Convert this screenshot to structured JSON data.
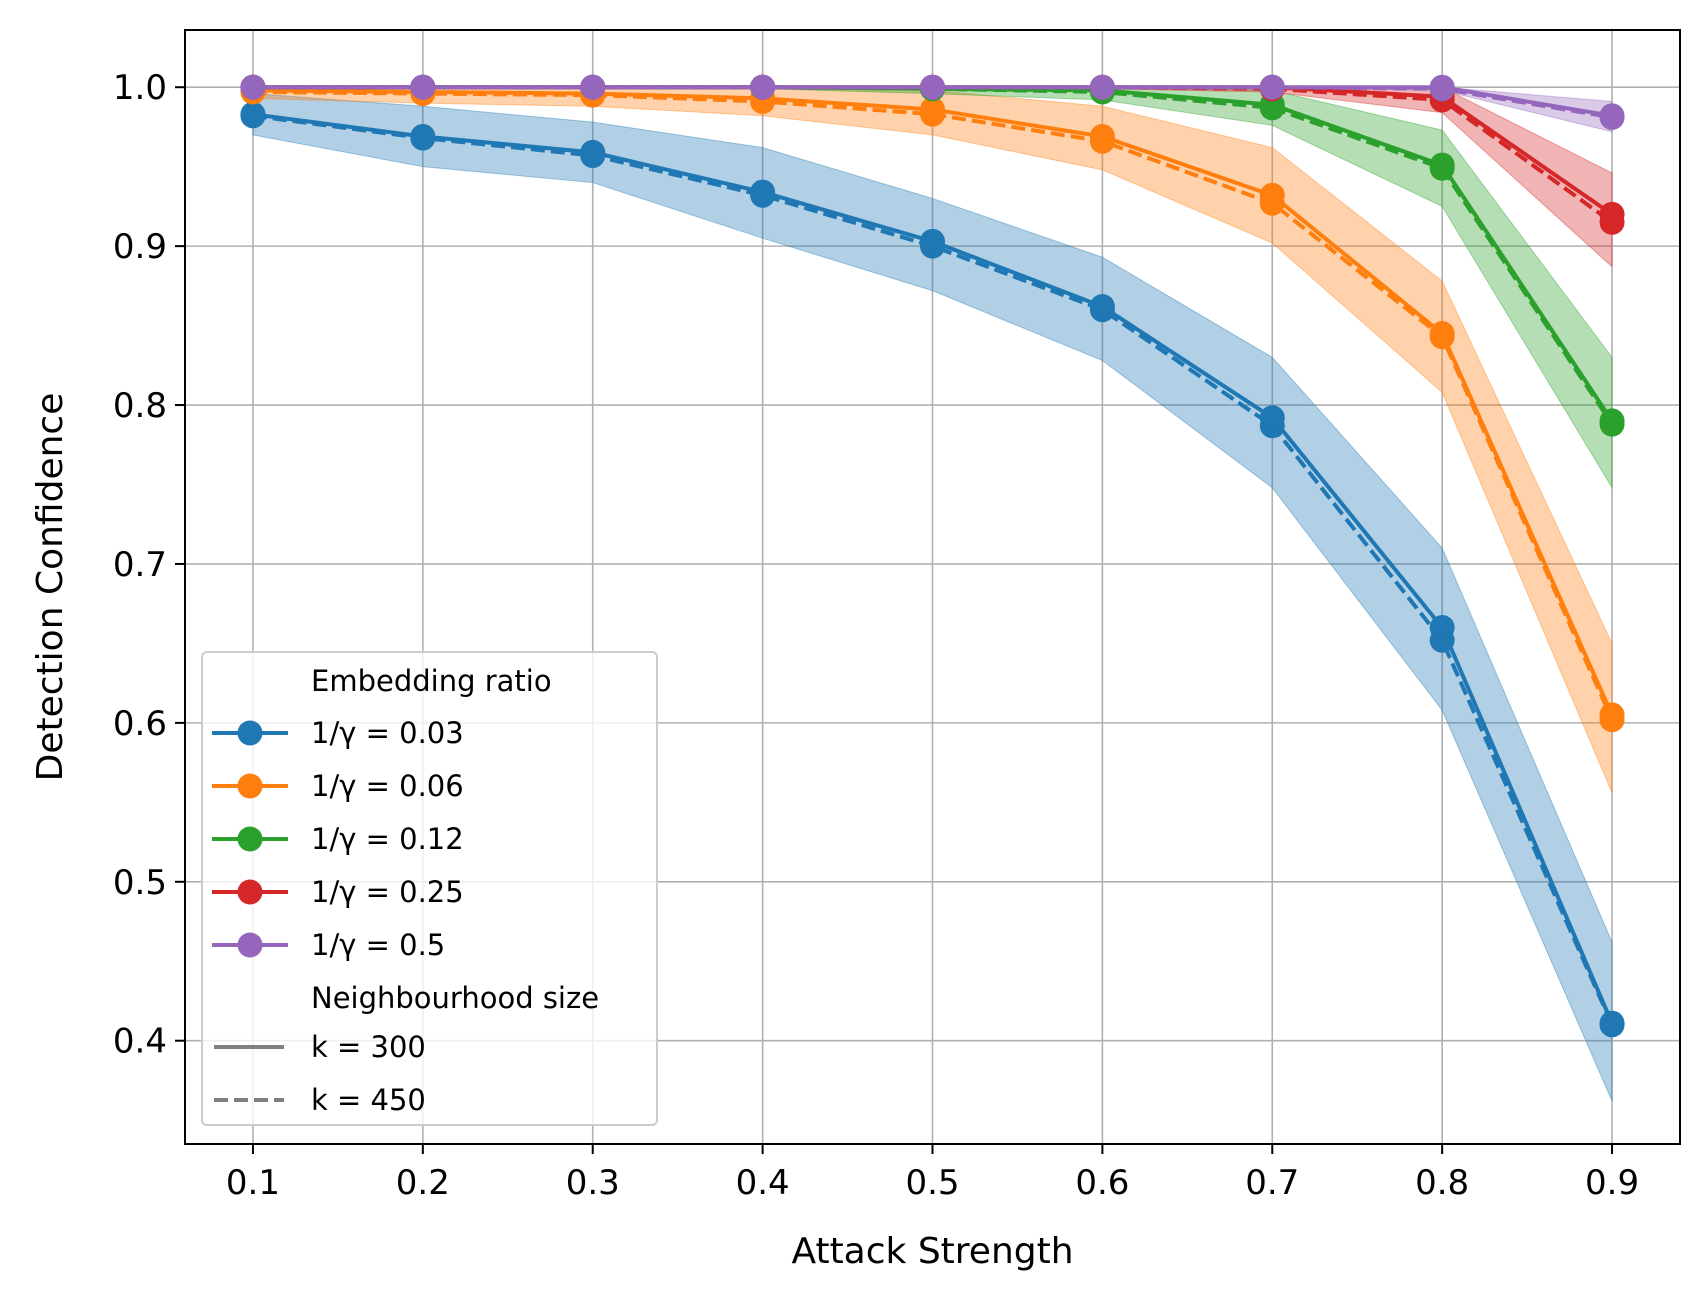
{
  "chart_data": {
    "type": "line",
    "title": "",
    "xlabel": "Attack Strength",
    "ylabel": "Detection Confidence",
    "x": [
      0.1,
      0.2,
      0.3,
      0.4,
      0.5,
      0.6,
      0.7,
      0.8,
      0.9
    ],
    "x_ticks": [
      "0.1",
      "0.2",
      "0.3",
      "0.4",
      "0.5",
      "0.6",
      "0.7",
      "0.8",
      "0.9"
    ],
    "y_ticks": [
      "0.4",
      "0.5",
      "0.6",
      "0.7",
      "0.8",
      "0.9",
      "1.0"
    ],
    "xlim": [
      0.06,
      0.94
    ],
    "ylim": [
      0.335,
      1.036
    ],
    "grid": true,
    "legend_position": "lower left",
    "legend": {
      "ratio_title": "Embedding ratio",
      "size_title": "Neighbourhood size",
      "k_entries": [
        {
          "label": "k = 300",
          "dash": "solid",
          "color": "#808080"
        },
        {
          "label": "k = 450",
          "dash": "dashed",
          "color": "#808080"
        }
      ]
    },
    "series": [
      {
        "name": "1/γ = 0.03",
        "color": "#1f77b4",
        "k300": [
          0.983,
          0.969,
          0.959,
          0.934,
          0.903,
          0.862,
          0.792,
          0.66,
          0.411
        ],
        "k450": [
          0.982,
          0.968,
          0.957,
          0.932,
          0.9,
          0.86,
          0.787,
          0.652,
          0.41
        ],
        "lower": [
          0.97,
          0.95,
          0.94,
          0.905,
          0.872,
          0.828,
          0.748,
          0.608,
          0.362
        ],
        "upper": [
          0.996,
          0.988,
          0.978,
          0.962,
          0.93,
          0.893,
          0.83,
          0.71,
          0.462
        ]
      },
      {
        "name": "1/γ = 0.06",
        "color": "#ff7f0e",
        "k300": [
          0.998,
          0.997,
          0.996,
          0.993,
          0.986,
          0.969,
          0.932,
          0.845,
          0.605
        ],
        "k450": [
          0.997,
          0.996,
          0.995,
          0.991,
          0.983,
          0.966,
          0.927,
          0.843,
          0.602
        ],
        "lower": [
          0.993,
          0.99,
          0.988,
          0.982,
          0.97,
          0.948,
          0.902,
          0.808,
          0.556
        ],
        "upper": [
          1.0,
          1.0,
          1.0,
          1.0,
          0.998,
          0.988,
          0.962,
          0.878,
          0.65
        ]
      },
      {
        "name": "1/γ = 0.12",
        "color": "#2ca02c",
        "k300": [
          1.0,
          1.0,
          1.0,
          1.0,
          0.999,
          0.998,
          0.989,
          0.951,
          0.79
        ],
        "k450": [
          1.0,
          1.0,
          1.0,
          1.0,
          0.999,
          0.997,
          0.987,
          0.949,
          0.788
        ],
        "lower": [
          0.999,
          0.999,
          0.999,
          0.999,
          0.996,
          0.992,
          0.976,
          0.925,
          0.748
        ],
        "upper": [
          1.0,
          1.0,
          1.0,
          1.0,
          1.0,
          1.0,
          0.998,
          0.973,
          0.83
        ]
      },
      {
        "name": "1/γ = 0.25",
        "color": "#d62728",
        "k300": [
          1.0,
          1.0,
          1.0,
          1.0,
          1.0,
          1.0,
          1.0,
          0.994,
          0.92
        ],
        "k450": [
          1.0,
          1.0,
          1.0,
          1.0,
          1.0,
          1.0,
          0.999,
          0.992,
          0.915
        ],
        "lower": [
          1.0,
          1.0,
          1.0,
          1.0,
          1.0,
          0.999,
          0.997,
          0.984,
          0.887
        ],
        "upper": [
          1.0,
          1.0,
          1.0,
          1.0,
          1.0,
          1.0,
          1.0,
          1.0,
          0.946
        ]
      },
      {
        "name": "1/γ = 0.5",
        "color": "#9467bd",
        "k300": [
          1.0,
          1.0,
          1.0,
          1.0,
          1.0,
          1.0,
          1.0,
          1.0,
          0.982
        ],
        "k450": [
          1.0,
          1.0,
          1.0,
          1.0,
          1.0,
          1.0,
          1.0,
          0.999,
          0.981
        ],
        "lower": [
          1.0,
          1.0,
          1.0,
          1.0,
          1.0,
          1.0,
          1.0,
          0.998,
          0.972
        ],
        "upper": [
          1.0,
          1.0,
          1.0,
          1.0,
          1.0,
          1.0,
          1.0,
          1.0,
          0.991
        ]
      }
    ]
  }
}
